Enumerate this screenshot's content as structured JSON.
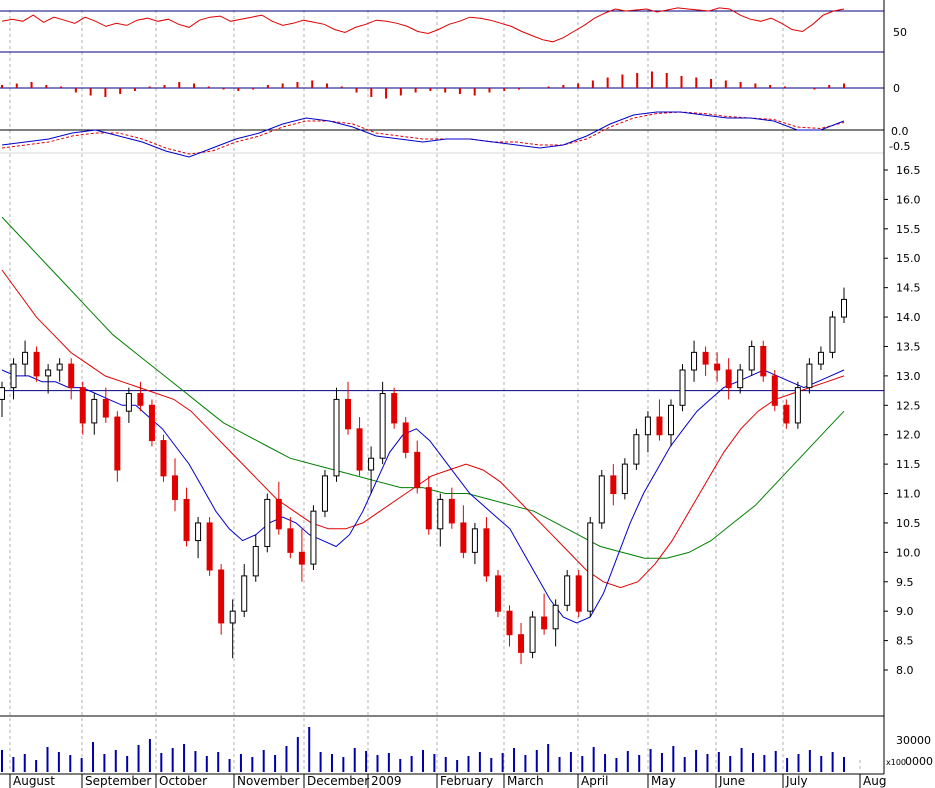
{
  "chart_data": {
    "type": "candlestick",
    "grid": "vertical dashed monthly separators",
    "x_axis": {
      "months": [
        "August",
        "September",
        "October",
        "November",
        "December",
        "2009",
        "February",
        "March",
        "April",
        "May",
        "June",
        "July",
        "Aug"
      ]
    },
    "panels": {
      "rsi": {
        "ticks": [
          "50"
        ],
        "lines": [
          70,
          30
        ],
        "values": [
          60,
          62,
          60,
          66,
          59,
          64,
          61,
          58,
          64,
          60,
          55,
          58,
          56,
          61,
          63,
          60,
          62,
          57,
          54,
          61,
          64,
          65,
          60,
          62,
          64,
          66,
          60,
          56,
          58,
          61,
          59,
          57,
          52,
          49,
          54,
          57,
          61,
          60,
          58,
          55,
          50,
          48,
          52,
          57,
          60,
          64,
          63,
          61,
          58,
          55,
          50,
          46,
          42,
          40,
          44,
          50,
          56,
          63,
          68,
          72,
          70,
          71,
          72,
          69,
          71,
          73,
          72,
          71,
          70,
          73,
          72,
          66,
          62,
          60,
          63,
          58,
          52,
          50,
          57,
          66,
          70,
          72
        ]
      },
      "histogram": {
        "ticks": [
          "0"
        ],
        "values": [
          0.02,
          0.03,
          0.04,
          0.02,
          0.01,
          -0.03,
          -0.05,
          -0.06,
          -0.04,
          -0.02,
          0.01,
          0.02,
          0.04,
          0.03,
          0.01,
          -0.01,
          -0.02,
          -0.01,
          0.02,
          0.03,
          0.04,
          0.05,
          0.03,
          0.01,
          -0.03,
          -0.06,
          -0.07,
          -0.05,
          -0.03,
          -0.02,
          -0.03,
          -0.04,
          -0.05,
          -0.03,
          -0.02,
          -0.01,
          0.0,
          0.01,
          0.02,
          0.03,
          0.05,
          0.07,
          0.09,
          0.1,
          0.11,
          0.1,
          0.08,
          0.07,
          0.06,
          0.05,
          0.04,
          0.03,
          0.02,
          0.01,
          0.0,
          -0.01,
          0.02,
          0.03
        ]
      },
      "macd": {
        "ticks": [
          "0.0",
          "-0.5"
        ],
        "macd": [
          -0.5,
          -0.4,
          -0.3,
          -0.1,
          0.0,
          -0.2,
          -0.4,
          -0.7,
          -0.9,
          -0.6,
          -0.3,
          -0.1,
          0.2,
          0.4,
          0.3,
          0.1,
          -0.2,
          -0.3,
          -0.4,
          -0.3,
          -0.3,
          -0.4,
          -0.5,
          -0.6,
          -0.5,
          -0.2,
          0.2,
          0.5,
          0.6,
          0.6,
          0.5,
          0.4,
          0.4,
          0.3,
          0.0,
          0.0,
          0.3
        ],
        "signal": [
          -0.6,
          -0.5,
          -0.4,
          -0.2,
          -0.1,
          -0.1,
          -0.3,
          -0.6,
          -0.8,
          -0.7,
          -0.4,
          -0.2,
          0.1,
          0.3,
          0.3,
          0.2,
          -0.1,
          -0.2,
          -0.3,
          -0.3,
          -0.3,
          -0.4,
          -0.4,
          -0.5,
          -0.5,
          -0.3,
          0.1,
          0.4,
          0.55,
          0.6,
          0.55,
          0.45,
          0.4,
          0.35,
          0.1,
          0.05,
          0.25
        ]
      },
      "price": {
        "ticks": [
          "16.5",
          "16.0",
          "15.5",
          "15.0",
          "14.5",
          "14.0",
          "13.5",
          "13.0",
          "12.5",
          "12.0",
          "11.5",
          "11.0",
          "10.5",
          "10.0",
          "9.5",
          "9.0",
          "8.5",
          "8.0"
        ],
        "resistance_line": 12.75,
        "ohlc": [
          [
            12.6,
            12.9,
            12.3,
            12.8
          ],
          [
            12.8,
            13.3,
            12.6,
            13.2
          ],
          [
            13.2,
            13.6,
            13.0,
            13.4
          ],
          [
            13.4,
            13.5,
            12.9,
            13.0
          ],
          [
            13.0,
            13.2,
            12.7,
            13.1
          ],
          [
            13.1,
            13.3,
            12.9,
            13.2
          ],
          [
            13.2,
            13.3,
            12.6,
            12.8
          ],
          [
            12.8,
            12.9,
            12.0,
            12.2
          ],
          [
            12.2,
            12.7,
            12.0,
            12.6
          ],
          [
            12.6,
            12.8,
            12.2,
            12.3
          ],
          [
            12.3,
            12.4,
            11.2,
            11.4
          ],
          [
            12.4,
            12.8,
            12.2,
            12.7
          ],
          [
            12.7,
            12.9,
            12.4,
            12.5
          ],
          [
            12.5,
            12.6,
            11.8,
            11.9
          ],
          [
            11.9,
            12.0,
            11.2,
            11.3
          ],
          [
            11.3,
            11.6,
            10.7,
            10.9
          ],
          [
            10.9,
            11.1,
            10.1,
            10.2
          ],
          [
            10.2,
            10.6,
            9.9,
            10.5
          ],
          [
            10.5,
            10.6,
            9.6,
            9.7
          ],
          [
            9.7,
            9.8,
            8.6,
            8.8
          ],
          [
            8.8,
            9.2,
            8.2,
            9.0
          ],
          [
            9.0,
            9.8,
            8.9,
            9.6
          ],
          [
            9.6,
            10.3,
            9.5,
            10.1
          ],
          [
            10.1,
            11.0,
            10.0,
            10.9
          ],
          [
            10.9,
            11.2,
            10.3,
            10.4
          ],
          [
            10.4,
            10.6,
            9.9,
            10.0
          ],
          [
            10.0,
            10.4,
            9.5,
            9.8
          ],
          [
            9.8,
            10.8,
            9.7,
            10.7
          ],
          [
            10.7,
            11.4,
            10.6,
            11.3
          ],
          [
            11.3,
            12.8,
            11.2,
            12.6
          ],
          [
            12.6,
            12.9,
            12.0,
            12.1
          ],
          [
            12.1,
            12.3,
            11.3,
            11.4
          ],
          [
            11.4,
            11.8,
            11.0,
            11.6
          ],
          [
            11.6,
            12.9,
            11.5,
            12.7
          ],
          [
            12.7,
            12.8,
            12.1,
            12.2
          ],
          [
            12.2,
            12.3,
            11.6,
            11.7
          ],
          [
            11.7,
            11.9,
            11.0,
            11.1
          ],
          [
            11.1,
            11.3,
            10.3,
            10.4
          ],
          [
            10.4,
            11.0,
            10.1,
            10.9
          ],
          [
            10.9,
            11.1,
            10.4,
            10.5
          ],
          [
            10.5,
            10.8,
            9.9,
            10.0
          ],
          [
            10.0,
            10.5,
            9.8,
            10.4
          ],
          [
            10.4,
            10.6,
            9.5,
            9.6
          ],
          [
            9.6,
            9.7,
            8.9,
            9.0
          ],
          [
            9.0,
            9.1,
            8.4,
            8.6
          ],
          [
            8.6,
            8.8,
            8.1,
            8.3
          ],
          [
            8.3,
            9.0,
            8.2,
            8.9
          ],
          [
            8.9,
            9.3,
            8.6,
            8.7
          ],
          [
            8.7,
            9.2,
            8.4,
            9.1
          ],
          [
            9.1,
            9.7,
            9.0,
            9.6
          ],
          [
            9.6,
            9.7,
            8.9,
            9.0
          ],
          [
            9.0,
            10.6,
            8.9,
            10.5
          ],
          [
            10.5,
            11.4,
            10.4,
            11.3
          ],
          [
            11.3,
            11.5,
            10.8,
            11.0
          ],
          [
            11.0,
            11.6,
            10.9,
            11.5
          ],
          [
            11.5,
            12.1,
            11.4,
            12.0
          ],
          [
            12.0,
            12.4,
            11.7,
            12.3
          ],
          [
            12.3,
            12.6,
            11.9,
            12.0
          ],
          [
            12.0,
            12.6,
            11.8,
            12.5
          ],
          [
            12.5,
            13.2,
            12.4,
            13.1
          ],
          [
            13.1,
            13.6,
            12.9,
            13.4
          ],
          [
            13.4,
            13.5,
            13.0,
            13.2
          ],
          [
            13.2,
            13.4,
            12.9,
            13.1
          ],
          [
            13.1,
            13.3,
            12.6,
            12.8
          ],
          [
            12.8,
            13.2,
            12.7,
            13.1
          ],
          [
            13.1,
            13.6,
            13.0,
            13.5
          ],
          [
            13.5,
            13.6,
            12.9,
            13.0
          ],
          [
            13.0,
            13.1,
            12.4,
            12.5
          ],
          [
            12.5,
            12.6,
            12.1,
            12.2
          ],
          [
            12.2,
            12.9,
            12.1,
            12.8
          ],
          [
            12.8,
            13.3,
            12.7,
            13.2
          ],
          [
            13.2,
            13.5,
            13.1,
            13.4
          ],
          [
            13.4,
            14.1,
            13.3,
            14.0
          ],
          [
            14.0,
            14.5,
            13.9,
            14.3
          ]
        ],
        "ma_short": [
          13.1,
          13.0,
          13.0,
          12.9,
          12.9,
          12.8,
          12.8,
          12.7,
          12.6,
          12.5,
          12.5,
          12.3,
          12.1,
          11.8,
          11.5,
          11.1,
          10.7,
          10.4,
          10.2,
          10.3,
          10.5,
          10.6,
          10.5,
          10.3,
          10.2,
          10.1,
          10.3,
          10.7,
          11.2,
          11.7,
          12.0,
          12.1,
          11.9,
          11.6,
          11.3,
          11.0,
          10.8,
          10.6,
          10.4,
          10.0,
          9.6,
          9.2,
          8.9,
          8.8,
          8.9,
          9.3,
          9.9,
          10.5,
          11.0,
          11.4,
          11.8,
          12.1,
          12.4,
          12.6,
          12.8,
          12.9,
          13.0,
          13.1,
          13.0,
          12.9,
          12.8,
          12.9,
          13.0,
          13.1
        ],
        "ma_mid": [
          14.8,
          14.4,
          14.0,
          13.7,
          13.4,
          13.2,
          13.0,
          12.9,
          12.8,
          12.7,
          12.6,
          12.4,
          12.1,
          11.8,
          11.5,
          11.2,
          10.9,
          10.7,
          10.5,
          10.4,
          10.4,
          10.5,
          10.7,
          10.9,
          11.1,
          11.3,
          11.4,
          11.5,
          11.4,
          11.2,
          10.9,
          10.6,
          10.3,
          10.0,
          9.7,
          9.5,
          9.4,
          9.5,
          9.8,
          10.2,
          10.7,
          11.2,
          11.7,
          12.1,
          12.4,
          12.6,
          12.7,
          12.8,
          12.9,
          13.0
        ],
        "ma_long": [
          15.7,
          15.3,
          14.9,
          14.5,
          14.1,
          13.7,
          13.4,
          13.1,
          12.8,
          12.5,
          12.2,
          12.0,
          11.8,
          11.6,
          11.5,
          11.4,
          11.3,
          11.2,
          11.1,
          11.1,
          11.0,
          11.0,
          10.9,
          10.8,
          10.7,
          10.5,
          10.3,
          10.1,
          10.0,
          9.9,
          9.9,
          10.0,
          10.2,
          10.5,
          10.8,
          11.2,
          11.6,
          12.0,
          12.4
        ]
      },
      "volume": {
        "ticks": [
          "30000",
          "0000"
        ],
        "unit_label": "x100",
        "values": [
          22,
          15,
          18,
          12,
          25,
          20,
          17,
          14,
          30,
          18,
          22,
          16,
          27,
          33,
          19,
          24,
          28,
          21,
          16,
          20,
          13,
          18,
          15,
          22,
          17,
          26,
          35,
          45,
          20,
          18,
          15,
          24,
          21,
          17,
          19,
          13,
          16,
          22,
          18,
          15,
          12,
          16,
          20,
          14,
          19,
          24,
          17,
          22,
          28,
          15,
          20,
          16,
          25,
          18,
          14,
          21,
          17,
          23,
          19,
          26,
          15,
          22,
          18,
          20,
          16,
          24,
          19,
          17,
          21,
          14,
          18,
          22,
          16,
          20,
          15
        ]
      }
    }
  }
}
